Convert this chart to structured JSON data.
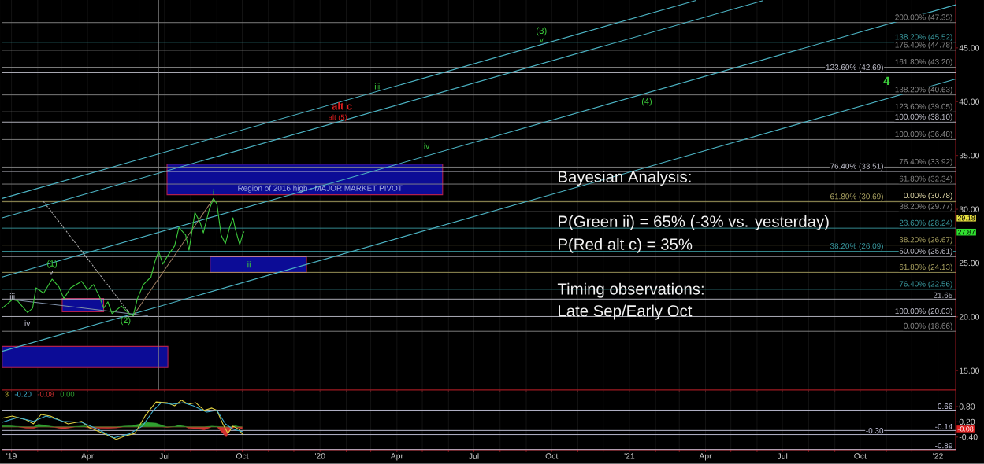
{
  "chart_data": [
    {
      "type": "line",
      "xlim": [
        "2018-12-21",
        "2022-01-22"
      ],
      "ylim": [
        13.2,
        49.45
      ],
      "tick_labels": "y",
      "grid": "x",
      "xticks": [
        {
          "value": "2019-01-01",
          "label": null
        },
        {
          "value": "2019-02-01",
          "label": null
        },
        {
          "value": "2019-03-01",
          "label": null
        },
        {
          "value": "2019-04-01",
          "label": null
        },
        {
          "value": "2019-05-01",
          "label": null
        },
        {
          "value": "2019-06-01",
          "label": null
        },
        {
          "value": "2019-07-01",
          "label": null
        },
        {
          "value": "2019-08-01",
          "label": null
        },
        {
          "value": "2019-09-01",
          "label": null
        },
        {
          "value": "2019-10-01",
          "label": null
        },
        {
          "value": "2019-11-01",
          "label": null
        },
        {
          "value": "2019-12-01",
          "label": null
        },
        {
          "value": "2020-01-01",
          "label": null
        },
        {
          "value": "2020-02-01",
          "label": null
        },
        {
          "value": "2020-03-01",
          "label": null
        },
        {
          "value": "2020-04-01",
          "label": null
        },
        {
          "value": "2020-05-01",
          "label": null
        },
        {
          "value": "2020-06-01",
          "label": null
        },
        {
          "value": "2020-07-01",
          "label": null
        },
        {
          "value": "2020-08-01",
          "label": null
        },
        {
          "value": "2020-09-01",
          "label": null
        },
        {
          "value": "2020-10-01",
          "label": null
        },
        {
          "value": "2020-11-01",
          "label": null
        },
        {
          "value": "2020-12-01",
          "label": null
        },
        {
          "value": "2021-01-01",
          "label": null
        },
        {
          "value": "2021-02-01",
          "label": null
        },
        {
          "value": "2021-03-01",
          "label": null
        },
        {
          "value": "2021-04-01",
          "label": null
        },
        {
          "value": "2021-05-01",
          "label": null
        },
        {
          "value": "2021-06-01",
          "label": null
        },
        {
          "value": "2021-07-01",
          "label": null
        },
        {
          "value": "2021-08-01",
          "label": null
        },
        {
          "value": "2021-09-01",
          "label": null
        },
        {
          "value": "2021-10-01",
          "label": null
        },
        {
          "value": "2021-11-01",
          "label": null
        },
        {
          "value": "2021-12-01",
          "label": null
        },
        {
          "value": "2022-01-01",
          "label": null
        }
      ],
      "yticks": [
        {
          "value": 15,
          "label": "15.00"
        },
        {
          "value": 20,
          "label": "20.00"
        },
        {
          "value": 25,
          "label": "25.00"
        },
        {
          "value": 30,
          "label": "30.00"
        },
        {
          "value": 35,
          "label": "35.00"
        },
        {
          "value": 40,
          "label": "40.00"
        },
        {
          "value": 45,
          "label": "45.00"
        }
      ],
      "ref_lines": [
        {
          "axis": "y",
          "value": 47.35,
          "label": "200.00% (47.35)",
          "color": "#8a8a8a"
        },
        {
          "axis": "y",
          "value": 45.52,
          "label": "138.20% (45.52)",
          "color": "#3a9aa0"
        },
        {
          "axis": "y",
          "value": 44.78,
          "label": "176.40% (44.78)",
          "color": "#8a8a8a"
        },
        {
          "axis": "y",
          "value": 43.2,
          "label": "161.80% (43.20)",
          "color": "#8a8a8a"
        },
        {
          "axis": "y",
          "value": 42.69,
          "label": "123.60% (42.69)",
          "color": "#c0c0cc"
        },
        {
          "axis": "y",
          "value": 40.63,
          "label": "138.20% (40.63)",
          "color": "#8a8a8a"
        },
        {
          "axis": "y",
          "value": 39.05,
          "label": "123.60% (39.05)",
          "color": "#8a8a8a"
        },
        {
          "axis": "y",
          "value": 38.1,
          "label": "100.00% (38.10)",
          "color": "#c0c0cc"
        },
        {
          "axis": "y",
          "value": 36.48,
          "label": "100.00% (36.48)",
          "color": "#8a8a8a"
        },
        {
          "axis": "y",
          "value": 33.92,
          "label": "76.40% (33.92)",
          "color": "#8a8a8a"
        },
        {
          "axis": "y",
          "value": 33.51,
          "label": "76.40% (33.51)",
          "color": "#c0c0cc"
        },
        {
          "axis": "y",
          "value": 32.34,
          "label": "61.80% (32.34)",
          "color": "#8a8a8a"
        },
        {
          "axis": "y",
          "value": 30.78,
          "label": "0.00% (30.78)",
          "color": "#e0d8a8"
        },
        {
          "axis": "y",
          "value": 30.69,
          "label": "61.80% (30.69)",
          "color": "#a8a060"
        },
        {
          "axis": "y",
          "value": 29.77,
          "label": "38.20% (29.77)",
          "color": "#8a8a8a"
        },
        {
          "axis": "y",
          "value": 28.24,
          "label": "23.60% (28.24)",
          "color": "#3a9aa0"
        },
        {
          "axis": "y",
          "value": 26.67,
          "label": "38.20% (26.67)",
          "color": "#a8a060"
        },
        {
          "axis": "y",
          "value": 26.09,
          "label": "38.20% (26.09)",
          "color": "#3a9aa0"
        },
        {
          "axis": "y",
          "value": 25.61,
          "label": "50.00% (25.61)",
          "color": "#c0c0cc"
        },
        {
          "axis": "y",
          "value": 24.13,
          "label": "61.80% (24.13)",
          "color": "#a8a060"
        },
        {
          "axis": "y",
          "value": 22.56,
          "label": "76.40% (22.56)",
          "color": "#3a9aa0"
        },
        {
          "axis": "y",
          "value": 21.65,
          "label": "21.65",
          "color": "#c0c0cc"
        },
        {
          "axis": "y",
          "value": 20.03,
          "label": "100.00% (20.03)",
          "color": "#c0c0cc"
        },
        {
          "axis": "y",
          "value": 18.66,
          "label": "0.00% (18.66)",
          "color": "#8a8a8a"
        },
        {
          "axis": "x",
          "value": "2019-06-24",
          "color": "#8a8a8a"
        }
      ],
      "series": [
        {
          "color": "#0c0c96",
          "x": [
            "2019-07-04",
            "2020-05-25"
          ],
          "values": [
            null,
            null
          ],
          "lower": [
            31.35,
            31.35
          ],
          "upper": [
            34.2,
            34.2
          ]
        },
        {
          "color": "#0c0c96",
          "x": [
            "2019-08-24",
            "2019-12-16"
          ],
          "values": [
            null,
            null
          ],
          "lower": [
            24.12,
            24.12
          ],
          "upper": [
            25.58,
            25.58
          ]
        },
        {
          "color": "#0c0c96",
          "x": [
            "2019-03-02",
            "2019-04-20"
          ],
          "values": [
            null,
            null
          ],
          "lower": [
            20.47,
            20.47
          ],
          "upper": [
            21.7,
            21.7
          ]
        },
        {
          "color": "#0c0c96",
          "x": [
            "2018-12-21",
            "2019-07-05"
          ],
          "values": [
            null,
            null
          ],
          "lower": [
            15.29,
            15.29
          ],
          "upper": [
            17.26,
            17.26
          ]
        },
        {
          "color": "#4cb4c4",
          "x": [
            "2018-12-21",
            "2021-03-20"
          ],
          "values": [
            31.0,
            49.4
          ]
        },
        {
          "color": "#4cb4c4",
          "x": [
            "2018-12-21",
            "2021-06-08"
          ],
          "values": [
            29.2,
            49.4
          ]
        },
        {
          "color": "#4cb4c4",
          "x": [
            "2018-12-21",
            "2022-01-22"
          ],
          "values": [
            23.7,
            49.0
          ]
        },
        {
          "color": "#4cb4c4",
          "x": [
            "2018-12-21",
            "2022-01-22"
          ],
          "values": [
            16.8,
            42.1
          ]
        },
        {
          "color": "#b0b0b0",
          "line_style": "dotted",
          "x": [
            "2019-02-08",
            "2019-05-21"
          ],
          "values": [
            30.7,
            20.3
          ]
        },
        {
          "color": "#9a7a60",
          "x": [
            "2019-05-25",
            "2019-08-28"
          ],
          "values": [
            20.1,
            31.0
          ]
        },
        {
          "color": "#7f90a8",
          "x": [
            "2019-01-02",
            "2019-06-11"
          ],
          "values": [
            21.6,
            20.1
          ]
        },
        {
          "color": "#3cc83c",
          "x": [
            "2018-12-21",
            "2019-01-02",
            "2019-01-08",
            "2019-01-20",
            "2019-01-26",
            "2019-01-30",
            "2019-02-08",
            "2019-02-18",
            "2019-02-26",
            "2019-03-04",
            "2019-03-12",
            "2019-03-25",
            "2019-04-01",
            "2019-04-08",
            "2019-04-15",
            "2019-04-20",
            "2019-04-25",
            "2019-04-30",
            "2019-05-11",
            "2019-05-20",
            "2019-05-25",
            "2019-05-30",
            "2019-06-06",
            "2019-06-15",
            "2019-06-20",
            "2019-06-24",
            "2019-06-29",
            "2019-07-05",
            "2019-07-13",
            "2019-07-18",
            "2019-07-26",
            "2019-07-30",
            "2019-08-06",
            "2019-08-12",
            "2019-08-16",
            "2019-08-23",
            "2019-08-28",
            "2019-09-01",
            "2019-09-06",
            "2019-09-11",
            "2019-09-16",
            "2019-09-20",
            "2019-09-23",
            "2019-09-28",
            "2019-10-02",
            "2019-10-03"
          ],
          "values": [
            20.8,
            21.6,
            21.5,
            20.4,
            20.8,
            22.7,
            22.2,
            23.5,
            22.8,
            21.7,
            22.7,
            23.3,
            22.5,
            23.0,
            21.9,
            20.8,
            21.4,
            20.3,
            21.0,
            20.3,
            20.1,
            21.7,
            23.0,
            23.7,
            25.2,
            26.1,
            24.9,
            25.7,
            26.6,
            28.3,
            27.6,
            26.2,
            29.7,
            28.8,
            27.8,
            30.0,
            31.0,
            30.5,
            27.6,
            26.8,
            28.3,
            29.2,
            28.1,
            26.7,
            27.8,
            27.9
          ]
        }
      ],
      "annotations": [
        "Bayesian Analysis:",
        "P(Green ii) = 65% (-3% vs. yesterday)",
        "P(Red alt c) = 35%",
        "Timing observations:",
        "Late Sep/Early Oct",
        "iv",
        "(2)",
        "iii",
        "iv",
        "(3)",
        "(4)",
        "4",
        "ii",
        {
          "text": "Region of 2016 high - MAJOR MARKET PIVOT",
          "x": "2020-01-01",
          "y": 31.9
        },
        {
          "text": "iii",
          "x": "2019-01-02",
          "y": 21.9
        },
        {
          "text": "(1)",
          "x": "2019-02-18",
          "y": 24.9
        },
        {
          "text": "v",
          "x": "2019-02-17",
          "y": 24.1
        },
        {
          "text": "i",
          "x": "2019-08-28",
          "y": 31.6
        },
        {
          "text": "alt c",
          "x": "2020-01-27",
          "y": 39.6
        },
        {
          "text": "alt (5)",
          "x": "2020-01-22",
          "y": 38.5
        },
        {
          "text": "v",
          "x": "2020-09-19",
          "y": 45.7
        },
        {
          "text": "29.18",
          "y": 29.18
        },
        {
          "text": "27.87",
          "y": 27.87
        }
      ]
    },
    {
      "type": "line",
      "legend": "top left",
      "grid": "x",
      "xlim": [
        "2018-12-21",
        "2022-01-22"
      ],
      "ylim": [
        -0.9,
        1.45
      ],
      "xticks": [
        {
          "value": "2019-01-01",
          "label": "'19"
        },
        {
          "value": "2019-02-01",
          "label": null
        },
        {
          "value": "2019-03-01",
          "label": null
        },
        {
          "value": "2019-04-01",
          "label": "Apr"
        },
        {
          "value": "2019-05-01",
          "label": null
        },
        {
          "value": "2019-06-01",
          "label": null
        },
        {
          "value": "2019-07-01",
          "label": "Jul"
        },
        {
          "value": "2019-08-01",
          "label": null
        },
        {
          "value": "2019-09-01",
          "label": null
        },
        {
          "value": "2019-10-01",
          "label": "Oct"
        },
        {
          "value": "2019-11-01",
          "label": null
        },
        {
          "value": "2019-12-01",
          "label": null
        },
        {
          "value": "2020-01-01",
          "label": "'20"
        },
        {
          "value": "2020-02-01",
          "label": null
        },
        {
          "value": "2020-03-01",
          "label": null
        },
        {
          "value": "2020-04-01",
          "label": "Apr"
        },
        {
          "value": "2020-05-01",
          "label": null
        },
        {
          "value": "2020-06-01",
          "label": null
        },
        {
          "value": "2020-07-01",
          "label": "Jul"
        },
        {
          "value": "2020-08-01",
          "label": null
        },
        {
          "value": "2020-09-01",
          "label": null
        },
        {
          "value": "2020-10-01",
          "label": "Oct"
        },
        {
          "value": "2020-11-01",
          "label": null
        },
        {
          "value": "2020-12-01",
          "label": null
        },
        {
          "value": "2021-01-01",
          "label": "'21"
        },
        {
          "value": "2021-02-01",
          "label": null
        },
        {
          "value": "2021-03-01",
          "label": null
        },
        {
          "value": "2021-04-01",
          "label": "Apr"
        },
        {
          "value": "2021-05-01",
          "label": null
        },
        {
          "value": "2021-06-01",
          "label": null
        },
        {
          "value": "2021-07-01",
          "label": "Jul"
        },
        {
          "value": "2021-08-01",
          "label": null
        },
        {
          "value": "2021-09-01",
          "label": null
        },
        {
          "value": "2021-10-01",
          "label": "Oct"
        },
        {
          "value": "2021-11-01",
          "label": null
        },
        {
          "value": "2021-12-01",
          "label": null
        },
        {
          "value": "2022-01-01",
          "label": "'22"
        }
      ],
      "yticks": [
        {
          "value": 0.8,
          "label": "0.80"
        },
        {
          "value": 0.2,
          "label": "0.20"
        },
        {
          "value": -0.4,
          "label": "-0.40"
        }
      ],
      "ref_lines": [
        {
          "axis": "y",
          "value": 0.66,
          "label": "0.66",
          "color": "#c8c8e0"
        },
        {
          "axis": "y",
          "value": -0.14,
          "label": "-0.14",
          "color": "#c8c8e0"
        },
        {
          "axis": "y",
          "value": -0.3,
          "label": "-0.30",
          "color": "#c8c8e0"
        },
        {
          "axis": "y",
          "value": -0.89,
          "label": "-0.89",
          "color": "#c8c8e0"
        }
      ],
      "series": [
        {
          "name": "3",
          "color": "#e0d040",
          "x": [
            "2018-12-21",
            "2019-01-02",
            "2019-01-18",
            "2019-01-27",
            "2019-02-05",
            "2019-02-16",
            "2019-02-26",
            "2019-03-09",
            "2019-03-25",
            "2019-04-03",
            "2019-04-22",
            "2019-05-05",
            "2019-05-17",
            "2019-05-27",
            "2019-06-08",
            "2019-06-21",
            "2019-07-04",
            "2019-07-13",
            "2019-07-21",
            "2019-07-29",
            "2019-08-07",
            "2019-08-17",
            "2019-08-26",
            "2019-09-01",
            "2019-09-08",
            "2019-09-14",
            "2019-09-20",
            "2019-09-27",
            "2019-10-01"
          ],
          "values": [
            0.34,
            0.43,
            0.28,
            0.12,
            0.49,
            0.43,
            0.28,
            0.12,
            0.22,
            -0.03,
            -0.28,
            -0.49,
            -0.34,
            -0.25,
            0.43,
            0.98,
            0.95,
            0.83,
            1.05,
            0.89,
            0.95,
            0.65,
            0.74,
            0.65,
            0.12,
            -0.25,
            0.03,
            -0.09,
            -0.28
          ]
        },
        {
          "name": "-0.20",
          "color": "#40b0d0",
          "x": [
            "2018-12-21",
            "2019-01-08",
            "2019-01-27",
            "2019-02-11",
            "2019-03-03",
            "2019-03-25",
            "2019-04-13",
            "2019-05-02",
            "2019-05-20",
            "2019-06-05",
            "2019-06-18",
            "2019-06-27",
            "2019-07-10",
            "2019-07-23",
            "2019-08-04",
            "2019-08-20",
            "2019-09-01",
            "2019-09-11",
            "2019-09-20",
            "2019-10-01"
          ],
          "values": [
            0.18,
            0.37,
            0.22,
            0.43,
            0.22,
            0.18,
            -0.09,
            -0.43,
            -0.28,
            0.03,
            0.65,
            0.95,
            0.89,
            0.95,
            0.83,
            0.58,
            0.65,
            0.12,
            -0.09,
            -0.18
          ]
        },
        {
          "name": "-0.08",
          "type": "area",
          "color": "#d03030",
          "x": [
            "2018-12-21",
            "2018-12-30",
            "2019-01-08",
            "2019-01-18",
            "2019-01-27",
            "2019-02-02",
            "2019-02-11",
            "2019-02-21",
            "2019-03-03",
            "2019-03-09",
            "2019-03-18",
            "2019-03-28",
            "2019-04-03",
            "2019-04-13",
            "2019-04-25",
            "2019-05-05",
            "2019-05-14",
            "2019-05-24",
            "2019-06-02",
            "2019-06-11",
            "2019-06-21",
            "2019-06-27",
            "2019-07-04",
            "2019-07-13",
            "2019-07-18",
            "2019-07-26",
            "2019-07-29",
            "2019-08-10",
            "2019-08-17",
            "2019-08-26",
            "2019-09-01",
            "2019-09-08",
            "2019-09-12",
            "2019-09-17",
            "2019-09-23",
            "2019-09-28",
            "2019-10-01"
          ],
          "values": [
            0,
            0,
            0,
            -0.05,
            -0.06,
            0,
            0,
            -0.02,
            -0.08,
            -0.05,
            0,
            0,
            -0.04,
            -0.05,
            -0.06,
            -0.04,
            0,
            0,
            0,
            0,
            0,
            0,
            -0.02,
            0,
            0,
            0,
            -0.05,
            -0.08,
            -0.12,
            0,
            0,
            -0.25,
            -0.4,
            -0.1,
            0,
            -0.05,
            -0.08
          ]
        },
        {
          "name": "0.00",
          "type": "area",
          "color": "#30a030",
          "x": [
            "2018-12-21",
            "2018-12-30",
            "2019-01-08",
            "2019-01-18",
            "2019-01-27",
            "2019-02-02",
            "2019-02-11",
            "2019-02-21",
            "2019-03-03",
            "2019-03-09",
            "2019-03-18",
            "2019-03-28",
            "2019-04-03",
            "2019-04-13",
            "2019-04-25",
            "2019-05-05",
            "2019-05-14",
            "2019-05-24",
            "2019-06-02",
            "2019-06-11",
            "2019-06-21",
            "2019-06-27",
            "2019-07-04",
            "2019-07-13",
            "2019-07-18",
            "2019-07-26",
            "2019-07-29",
            "2019-08-10",
            "2019-08-17",
            "2019-08-26",
            "2019-09-01",
            "2019-09-08",
            "2019-09-12",
            "2019-09-17",
            "2019-09-23",
            "2019-09-28",
            "2019-10-01"
          ],
          "values": [
            0.05,
            0.05,
            0.02,
            0,
            0,
            0.1,
            0.06,
            0,
            0,
            0,
            0.02,
            0.04,
            0,
            0,
            0,
            0,
            0.03,
            0.05,
            0.12,
            0.18,
            0.15,
            0.08,
            0,
            0.02,
            0.07,
            0.02,
            0,
            0,
            0,
            0.03,
            0.02,
            0,
            0,
            0,
            0.05,
            0,
            0
          ]
        }
      ],
      "annotations": [
        {
          "text": "-0.08",
          "y": -0.08
        }
      ]
    }
  ]
}
